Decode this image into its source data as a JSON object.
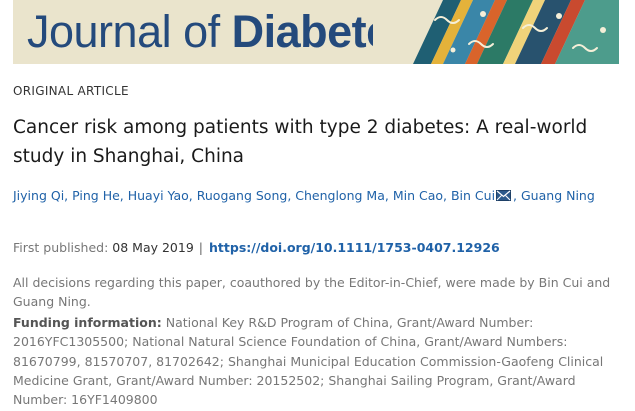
{
  "journal": {
    "title_light": "Journal of",
    "title_bold": "Diabetes"
  },
  "article": {
    "type": "ORIGINAL ARTICLE",
    "title": "Cancer risk among patients with type 2 diabetes: A real-world study in Shanghai, China"
  },
  "authors": [
    {
      "name": "Jiying Qi"
    },
    {
      "name": "Ping He"
    },
    {
      "name": "Huayi Yao"
    },
    {
      "name": "Ruogang Song"
    },
    {
      "name": "Chenglong Ma"
    },
    {
      "name": "Min Cao"
    },
    {
      "name": "Bin Cui",
      "corresponding_icon": "envelope-icon"
    },
    {
      "name": "Guang Ning"
    }
  ],
  "publication": {
    "first_published_label": "First published:",
    "date": "08 May 2019",
    "doi": "https://doi.org/10.1111/1753-0407.12926"
  },
  "editorial_note": "All decisions regarding this paper, coauthored by the Editor-in-Chief, were made by Bin Cui and Guang Ning.",
  "funding": {
    "label": "Funding information:",
    "text": "National Key R&D Program of China, Grant/Award Number: 2016YFC1305500; National Natural Science Foundation of China, Grant/Award Numbers: 81670799, 81570707, 81702642; Shanghai Municipal Education Commission-Gaofeng Clinical Medicine Grant, Grant/Award Number: 20152502; Shanghai Sailing Program, Grant/Award Number: 16YF1409800"
  },
  "colors": {
    "banner_bg": "#eae4cc",
    "journal_title": "#244a7c",
    "link": "#2062a8",
    "muted_text": "#777777"
  }
}
